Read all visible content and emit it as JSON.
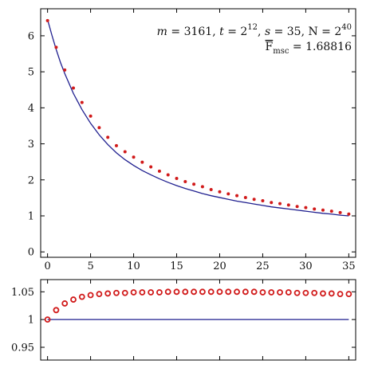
{
  "chart_data": [
    {
      "type": "scatter",
      "title": "",
      "xlabel": "",
      "ylabel": "",
      "xlim": [
        -0.8,
        35.8
      ],
      "ylim": [
        -0.15,
        6.75
      ],
      "xticks": [
        0,
        5,
        10,
        15,
        20,
        25,
        30,
        35
      ],
      "yticks": [
        0,
        1,
        2,
        3,
        4,
        5,
        6
      ],
      "annotation": {
        "line1": {
          "m_var": "m",
          "m_val": " = 3161, ",
          "t_var": "t",
          "t_eq": " = 2",
          "t_exp": "12",
          "sep": ", ",
          "s_var": "s",
          "s_val": " = 35, N = 2",
          "n_exp": "40"
        },
        "line2": {
          "f_main": "F",
          "f_sub": "msc",
          "f_val": " = 1.68816"
        }
      },
      "series": [
        {
          "style": "curve",
          "color": "#1f1f8f",
          "x": [
            0,
            0.5,
            1,
            1.5,
            2,
            3,
            4,
            5,
            6,
            7,
            8,
            9,
            10,
            11,
            12,
            13,
            14,
            15,
            16,
            17,
            18,
            19,
            20,
            21,
            22,
            23,
            24,
            25,
            26,
            27,
            28,
            29,
            30,
            31,
            32,
            33,
            34,
            35
          ],
          "y": [
            6.45,
            6.02,
            5.62,
            5.26,
            4.95,
            4.4,
            3.95,
            3.57,
            3.25,
            2.98,
            2.75,
            2.56,
            2.4,
            2.26,
            2.14,
            2.03,
            1.93,
            1.84,
            1.76,
            1.69,
            1.62,
            1.56,
            1.51,
            1.46,
            1.41,
            1.37,
            1.33,
            1.29,
            1.25,
            1.22,
            1.19,
            1.16,
            1.13,
            1.1,
            1.07,
            1.05,
            1.02,
            1.0
          ]
        },
        {
          "style": "points",
          "color": "#d11a1a",
          "x": [
            0,
            1,
            2,
            3,
            4,
            5,
            6,
            7,
            8,
            9,
            10,
            11,
            12,
            13,
            14,
            15,
            16,
            17,
            18,
            19,
            20,
            21,
            22,
            23,
            24,
            25,
            26,
            27,
            28,
            29,
            30,
            31,
            32,
            33,
            34,
            35
          ],
          "y": [
            6.42,
            5.68,
            5.05,
            4.55,
            4.15,
            3.77,
            3.45,
            3.18,
            2.95,
            2.78,
            2.63,
            2.49,
            2.36,
            2.24,
            2.14,
            2.04,
            1.95,
            1.88,
            1.81,
            1.73,
            1.67,
            1.61,
            1.56,
            1.51,
            1.46,
            1.42,
            1.37,
            1.34,
            1.3,
            1.26,
            1.23,
            1.19,
            1.16,
            1.13,
            1.09,
            1.05
          ]
        }
      ]
    },
    {
      "type": "scatter",
      "title": "",
      "xlabel": "",
      "ylabel": "",
      "xlim": [
        -0.8,
        35.8
      ],
      "ylim": [
        0.927,
        1.072
      ],
      "xticks": [
        0,
        5,
        10,
        15,
        20,
        25,
        30,
        35
      ],
      "yticks": [
        0.95,
        1,
        1.05
      ],
      "ytick_labels": [
        "0.95",
        "1",
        "1.05"
      ],
      "series": [
        {
          "style": "reference-line",
          "color": "#1f1f8f",
          "x": [
            0,
            35
          ],
          "y": [
            1,
            1
          ]
        },
        {
          "style": "open-circles",
          "color": "#d11a1a",
          "x": [
            0,
            1,
            2,
            3,
            4,
            5,
            6,
            7,
            8,
            9,
            10,
            11,
            12,
            13,
            14,
            15,
            16,
            17,
            18,
            19,
            20,
            21,
            22,
            23,
            24,
            25,
            26,
            27,
            28,
            29,
            30,
            31,
            32,
            33,
            34,
            35
          ],
          "y": [
            1.0,
            1.017,
            1.029,
            1.036,
            1.041,
            1.044,
            1.046,
            1.047,
            1.048,
            1.048,
            1.049,
            1.049,
            1.049,
            1.049,
            1.05,
            1.05,
            1.05,
            1.05,
            1.05,
            1.05,
            1.05,
            1.05,
            1.05,
            1.05,
            1.05,
            1.049,
            1.049,
            1.049,
            1.049,
            1.048,
            1.048,
            1.048,
            1.047,
            1.047,
            1.046,
            1.046
          ]
        }
      ]
    }
  ]
}
